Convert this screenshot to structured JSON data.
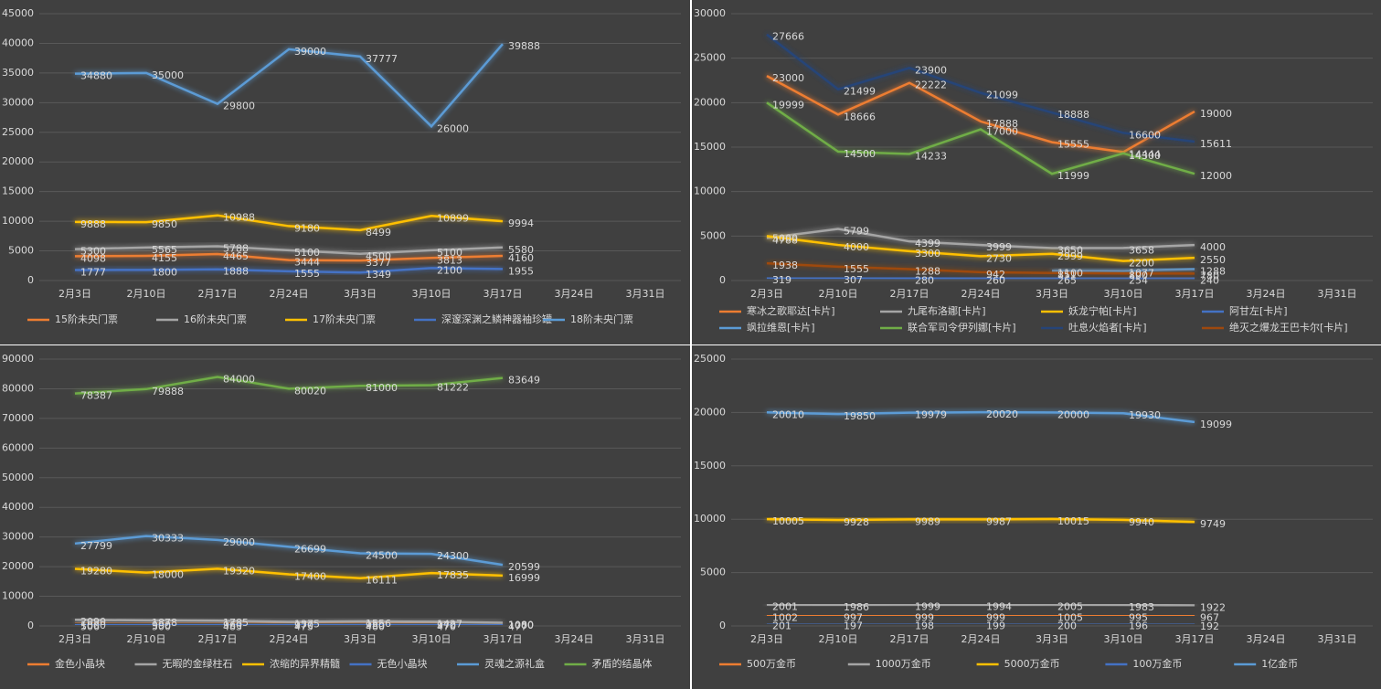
{
  "chart_data": [
    {
      "type": "line",
      "categories": [
        "2月3日",
        "2月10日",
        "2月17日",
        "2月24日",
        "3月3日",
        "3月10日",
        "3月17日",
        "3月24日",
        "3月31日"
      ],
      "ylim": [
        0,
        45000
      ],
      "yticks": [
        0,
        5000,
        10000,
        15000,
        20000,
        25000,
        30000,
        35000,
        40000,
        45000
      ],
      "grid": true,
      "legend": "bottom",
      "series": [
        {
          "name": "15阶未央门票",
          "color": "#ed7d31",
          "values": [
            4098,
            4155,
            4465,
            3444,
            3377,
            3813,
            4160,
            null,
            null
          ]
        },
        {
          "name": "16阶未央门票",
          "color": "#a5a5a5",
          "values": [
            5300,
            5565,
            5788,
            5100,
            4500,
            5100,
            5580,
            null,
            null
          ]
        },
        {
          "name": "17阶未央门票",
          "color": "#ffc000",
          "values": [
            9888,
            9850,
            10988,
            9180,
            8499,
            10899,
            9994,
            null,
            null
          ]
        },
        {
          "name": "深邃深渊之鳞神器袖珍罐",
          "color": "#4472c4",
          "values": [
            1777,
            1800,
            1888,
            1555,
            1349,
            2100,
            1955,
            null,
            null
          ]
        },
        {
          "name": "18阶未央门票",
          "color": "#5b9bd5",
          "values": [
            34880,
            35000,
            29800,
            39000,
            37777,
            26000,
            39888,
            null,
            null
          ]
        }
      ]
    },
    {
      "type": "line",
      "categories": [
        "2月3日",
        "2月10日",
        "2月17日",
        "2月24日",
        "3月3日",
        "3月10日",
        "3月17日",
        "3月24日",
        "3月31日"
      ],
      "ylim": [
        0,
        30000
      ],
      "yticks": [
        0,
        5000,
        10000,
        15000,
        20000,
        25000,
        30000
      ],
      "grid": true,
      "legend": "bottom",
      "series": [
        {
          "name": "寒冰之歌耶达[卡片]",
          "color": "#ed7d31",
          "values": [
            23000,
            18666,
            22222,
            17888,
            15555,
            14444,
            19000,
            null,
            null
          ]
        },
        {
          "name": "九尾布洛娜[卡片]",
          "color": "#a5a5a5",
          "values": [
            4788,
            5799,
            4399,
            3999,
            3650,
            3658,
            4000,
            null,
            null
          ]
        },
        {
          "name": "妖龙宁帕[卡片]",
          "color": "#ffc000",
          "values": [
            5000,
            4000,
            3300,
            2730,
            2999,
            2200,
            2550,
            null,
            null
          ]
        },
        {
          "name": "阿甘左[卡片]",
          "color": "#4472c4",
          "values": [
            319,
            307,
            280,
            260,
            265,
            254,
            240,
            null,
            null
          ]
        },
        {
          "name": "飒拉维恩[卡片]",
          "color": "#5b9bd5",
          "values": [
            null,
            null,
            null,
            null,
            1100,
            1077,
            1288,
            null,
            null
          ]
        },
        {
          "name": "联合军司令伊列娜[卡片]",
          "color": "#70ad47",
          "values": [
            19999,
            14500,
            14233,
            17000,
            11999,
            14300,
            12000,
            null,
            null
          ]
        },
        {
          "name": "吐息火焰者[卡片]",
          "color": "#264478",
          "values": [
            27666,
            21499,
            23900,
            21099,
            18888,
            16600,
            15611,
            null,
            null
          ]
        },
        {
          "name": "绝灭之爆龙王巴卡尔[卡片]",
          "color": "#9e480e",
          "values": [
            1938,
            1555,
            1288,
            942,
            851,
            800,
            780,
            null,
            null
          ]
        }
      ]
    },
    {
      "type": "line",
      "categories": [
        "2月3日",
        "2月10日",
        "2月17日",
        "2月24日",
        "3月3日",
        "3月10日",
        "3月17日",
        "3月24日",
        "3月31日"
      ],
      "ylim": [
        0,
        90000
      ],
      "yticks": [
        0,
        10000,
        20000,
        30000,
        40000,
        50000,
        60000,
        70000,
        80000,
        90000
      ],
      "grid": true,
      "legend": "bottom",
      "series": [
        {
          "name": "金色小晶块",
          "color": "#ed7d31",
          "values": [
            1000,
            990,
            960,
            970,
            980,
            970,
            1000,
            null,
            null
          ]
        },
        {
          "name": "无暇的金绿柱石",
          "color": "#a5a5a5",
          "values": [
            2090,
            1878,
            1785,
            1375,
            1556,
            1427,
            1080,
            null,
            null
          ]
        },
        {
          "name": "浓缩的异界精髓",
          "color": "#ffc000",
          "values": [
            19280,
            18000,
            19320,
            17400,
            16111,
            17835,
            16999,
            null,
            null
          ]
        },
        {
          "name": "无色小晶块",
          "color": "#4472c4",
          "values": [
            506,
            500,
            483,
            475,
            480,
            470,
            477,
            null,
            null
          ]
        },
        {
          "name": "灵魂之源礼盒",
          "color": "#5b9bd5",
          "values": [
            27799,
            30333,
            29000,
            26699,
            24500,
            24300,
            20599,
            null,
            null
          ]
        },
        {
          "name": "矛盾的结晶体",
          "color": "#70ad47",
          "values": [
            78387,
            79888,
            84000,
            80020,
            81000,
            81222,
            83649,
            null,
            null
          ]
        }
      ]
    },
    {
      "type": "line",
      "categories": [
        "2月3日",
        "2月10日",
        "2月17日",
        "2月24日",
        "3月3日",
        "3月10日",
        "3月17日",
        "3月24日",
        "3月31日"
      ],
      "ylim": [
        0,
        25000
      ],
      "yticks": [
        0,
        5000,
        10000,
        15000,
        20000,
        25000
      ],
      "grid": true,
      "legend": "bottom",
      "series": [
        {
          "name": "500万金币",
          "color": "#ed7d31",
          "values": [
            1002,
            997,
            999,
            999,
            1005,
            995,
            967,
            null,
            null
          ]
        },
        {
          "name": "1000万金币",
          "color": "#a5a5a5",
          "values": [
            2001,
            1986,
            1999,
            1994,
            2005,
            1983,
            1922,
            null,
            null
          ]
        },
        {
          "name": "5000万金币",
          "color": "#ffc000",
          "values": [
            10005,
            9928,
            9989,
            9987,
            10015,
            9940,
            9749,
            null,
            null
          ]
        },
        {
          "name": "100万金币",
          "color": "#4472c4",
          "values": [
            201,
            197,
            198,
            199,
            200,
            196,
            192,
            null,
            null
          ]
        },
        {
          "name": "1亿金币",
          "color": "#5b9bd5",
          "values": [
            20010,
            19850,
            19979,
            20020,
            20000,
            19930,
            19099,
            null,
            null
          ]
        }
      ]
    }
  ]
}
